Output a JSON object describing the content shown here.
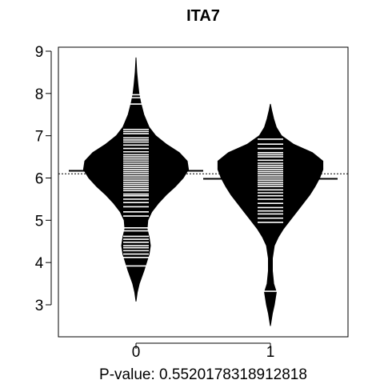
{
  "chart_data": {
    "type": "beanplot",
    "title": "ITA7",
    "xlabel": "P-value: 0.552017831891281​8",
    "categories": [
      "0",
      "1"
    ],
    "y_ticks": [
      3,
      4,
      5,
      6,
      7,
      8,
      9
    ],
    "ylim": [
      2.3,
      9.1
    ],
    "overall_mean": 6.1,
    "series": [
      {
        "category": "0",
        "mean": 6.17,
        "density": [
          [
            3.08,
            0
          ],
          [
            3.3,
            0.02
          ],
          [
            3.5,
            0.05
          ],
          [
            3.8,
            0.12
          ],
          [
            4.0,
            0.16
          ],
          [
            4.2,
            0.2
          ],
          [
            4.4,
            0.22
          ],
          [
            4.6,
            0.2
          ],
          [
            4.8,
            0.17
          ],
          [
            5.0,
            0.18
          ],
          [
            5.2,
            0.24
          ],
          [
            5.4,
            0.34
          ],
          [
            5.6,
            0.46
          ],
          [
            5.8,
            0.6
          ],
          [
            6.0,
            0.72
          ],
          [
            6.2,
            0.8
          ],
          [
            6.4,
            0.78
          ],
          [
            6.6,
            0.66
          ],
          [
            6.8,
            0.46
          ],
          [
            7.0,
            0.3
          ],
          [
            7.2,
            0.2
          ],
          [
            7.5,
            0.12
          ],
          [
            7.8,
            0.07
          ],
          [
            8.0,
            0.045
          ],
          [
            8.2,
            0.03
          ],
          [
            8.5,
            0.012
          ],
          [
            8.85,
            0
          ]
        ],
        "observations": [
          3.92,
          4.12,
          4.2,
          4.28,
          4.35,
          4.4,
          4.48,
          4.55,
          4.62,
          4.75,
          4.82,
          5.1,
          5.2,
          5.32,
          5.42,
          5.5,
          5.58,
          5.62,
          5.7,
          5.75,
          5.8,
          5.85,
          5.9,
          5.95,
          6.0,
          6.05,
          6.1,
          6.15,
          6.2,
          6.25,
          6.3,
          6.35,
          6.4,
          6.45,
          6.5,
          6.55,
          6.62,
          6.7,
          6.78,
          6.85,
          6.9,
          6.95,
          7.05,
          7.1,
          7.15,
          7.75,
          7.9,
          7.97
        ]
      },
      {
        "category": "1",
        "mean": 5.98,
        "density": [
          [
            2.5,
            0
          ],
          [
            2.8,
            0.03
          ],
          [
            3.0,
            0.06
          ],
          [
            3.3,
            0.09
          ],
          [
            3.5,
            0.05
          ],
          [
            3.8,
            0.03
          ],
          [
            4.1,
            0.03
          ],
          [
            4.4,
            0.06
          ],
          [
            4.6,
            0.12
          ],
          [
            4.8,
            0.2
          ],
          [
            5.0,
            0.3
          ],
          [
            5.2,
            0.4
          ],
          [
            5.4,
            0.5
          ],
          [
            5.6,
            0.6
          ],
          [
            5.8,
            0.68
          ],
          [
            6.0,
            0.75
          ],
          [
            6.2,
            0.8
          ],
          [
            6.4,
            0.8
          ],
          [
            6.6,
            0.64
          ],
          [
            6.8,
            0.35
          ],
          [
            7.0,
            0.17
          ],
          [
            7.2,
            0.09
          ],
          [
            7.4,
            0.05
          ],
          [
            7.6,
            0.02
          ],
          [
            7.75,
            0
          ]
        ],
        "observations": [
          3.32,
          4.95,
          5.05,
          5.15,
          5.22,
          5.3,
          5.4,
          5.5,
          5.58,
          5.65,
          5.72,
          5.8,
          5.85,
          5.9,
          5.95,
          6.0,
          6.05,
          6.1,
          6.15,
          6.2,
          6.25,
          6.3,
          6.35,
          6.42,
          6.5,
          6.55,
          6.6,
          6.7,
          6.8,
          6.92
        ]
      }
    ]
  }
}
